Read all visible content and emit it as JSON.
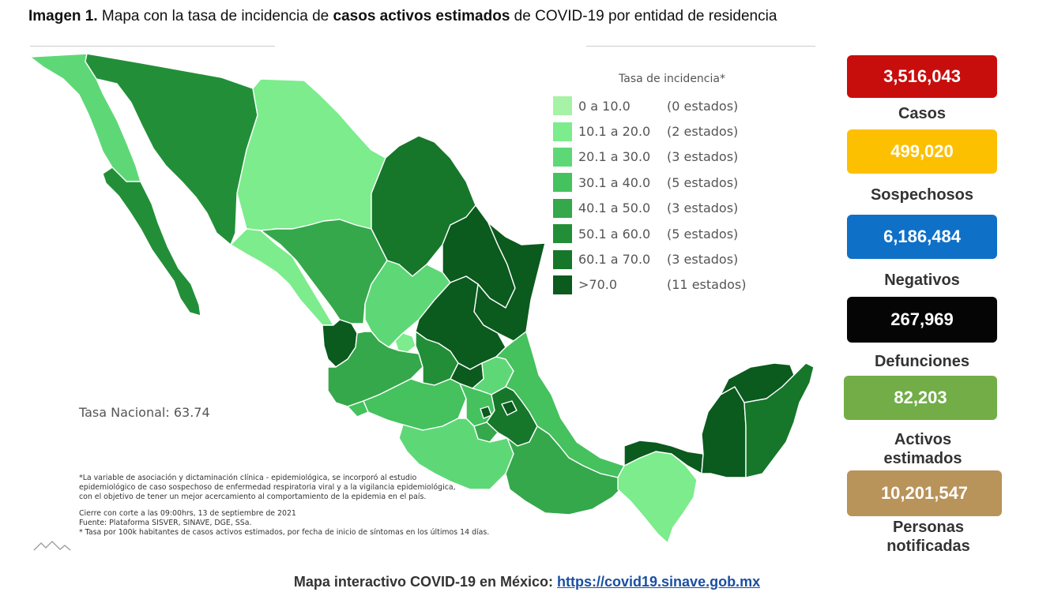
{
  "title": {
    "prefix_bold": "Imagen 1.",
    "text1": " Mapa con la tasa de incidencia de ",
    "bold2": "casos activos estimados",
    "text2": " de COVID-19 por entidad de residencia"
  },
  "legend": {
    "title": "Tasa de incidencia*",
    "items": [
      {
        "range": "0   a  10.0",
        "count": "(0 estados)",
        "color": "#a6f2a6"
      },
      {
        "range": "10.1 a  20.0",
        "count": "(2 estados)",
        "color": "#7cec8c"
      },
      {
        "range": "20.1 a  30.0",
        "count": "(3 estados)",
        "color": "#5ed877"
      },
      {
        "range": "30.1 a  40.0",
        "count": "(5 estados)",
        "color": "#45c15e"
      },
      {
        "range": "40.1 a  50.0",
        "count": "(3 estados)",
        "color": "#34a84b"
      },
      {
        "range": "50.1 a  60.0",
        "count": "(5 estados)",
        "color": "#228f38"
      },
      {
        "range": "60.1 a  70.0",
        "count": "(3 estados)",
        "color": "#16762a"
      },
      {
        "range": ">70.0",
        "count": "(11 estados)",
        "color": "#0b5a1e"
      }
    ]
  },
  "tasa_nacional": "Tasa Nacional: 63.74",
  "notes": {
    "line1": "*La variable de asociación y dictaminación clínica - epidemiológica, se incorporó al estudio",
    "line2": "epidemiológico de caso sospechoso de enfermedad respiratoria viral y a la vigilancia epidemiológica,",
    "line3": "con el objetivo de tener un mejor acercamiento al comportamiento de la epidemia en el país.",
    "line4": "Cierre con corte a las 09:00hrs, 13 de septiembre de 2021",
    "line5": "Fuente: Plataforma SISVER, SINAVE, DGE, SSa.",
    "line6": "* Tasa por 100k habitantes de casos activos estimados, por fecha de inicio de síntomas en los últimos 14 días."
  },
  "stats": [
    {
      "value": "3,516,043",
      "label": "Casos",
      "color": "#c80d0d"
    },
    {
      "value": "499,020",
      "label": "Sospechosos",
      "color": "#fdc000"
    },
    {
      "value": "6,186,484",
      "label": "Negativos",
      "color": "#0f70c8"
    },
    {
      "value": "267,969",
      "label": "Defunciones",
      "color": "#050505"
    },
    {
      "value": "82,203",
      "label": "Activos estimados",
      "color": "#72ad47"
    },
    {
      "value": "10,201,547",
      "label": "Personas notificadas",
      "color": "#b8935a"
    }
  ],
  "footer": {
    "text": "Mapa interactivo COVID-19 en México: ",
    "link": "https://covid19.sinave.gob.mx"
  }
}
